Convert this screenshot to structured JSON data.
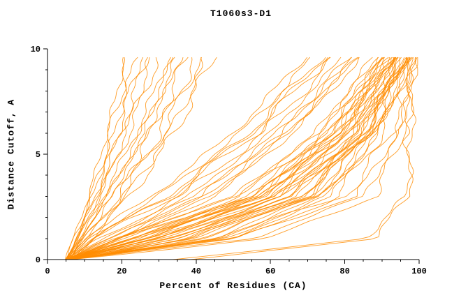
{
  "chart_data": {
    "type": "line",
    "title": "T1060s3-D1",
    "xlabel": "Percent of Residues (CA)",
    "ylabel": "Distance Cutoff, A",
    "xlim": [
      0,
      100
    ],
    "ylim": [
      0,
      10
    ],
    "x_ticks": [
      0,
      20,
      40,
      60,
      80,
      100
    ],
    "y_ticks": [
      0,
      5,
      10
    ],
    "x_minor_step": 5,
    "y_minor_step": 1,
    "grid": false,
    "legend": "none",
    "line_color": "#ff8c00",
    "axis_color": "#000000",
    "y_curve_max": 9.7,
    "anchor_y": [
      0,
      1,
      3,
      6,
      9.7
    ],
    "curves": [
      [
        5,
        22,
        55,
        75,
        90
      ],
      [
        5,
        25,
        60,
        80,
        93
      ],
      [
        6,
        30,
        65,
        83,
        95
      ],
      [
        5,
        18,
        50,
        72,
        88
      ],
      [
        6,
        28,
        62,
        82,
        94
      ],
      [
        5,
        35,
        68,
        85,
        96
      ],
      [
        6,
        40,
        70,
        86,
        96
      ],
      [
        5,
        20,
        52,
        74,
        91
      ],
      [
        6,
        32,
        64,
        84,
        95
      ],
      [
        5,
        26,
        58,
        79,
        93
      ],
      [
        6,
        38,
        69,
        86,
        97
      ],
      [
        5,
        24,
        57,
        78,
        92
      ],
      [
        6,
        33,
        66,
        85,
        96
      ],
      [
        5,
        29,
        61,
        81,
        94
      ],
      [
        6,
        42,
        72,
        87,
        97
      ],
      [
        5,
        21,
        54,
        76,
        90
      ],
      [
        6,
        36,
        67,
        85,
        96
      ],
      [
        5,
        27,
        59,
        80,
        93
      ],
      [
        6,
        44,
        73,
        88,
        97
      ],
      [
        5,
        23,
        56,
        77,
        92
      ],
      [
        6,
        34,
        65,
        84,
        95
      ],
      [
        5,
        31,
        63,
        83,
        95
      ],
      [
        6,
        46,
        74,
        88,
        98
      ],
      [
        5,
        19,
        51,
        73,
        89
      ],
      [
        6,
        39,
        70,
        86,
        96
      ],
      [
        5,
        28,
        60,
        80,
        94
      ],
      [
        6,
        48,
        75,
        89,
        98
      ],
      [
        5,
        25,
        57,
        78,
        92
      ],
      [
        6,
        37,
        68,
        85,
        96
      ],
      [
        5,
        30,
        62,
        82,
        94
      ],
      [
        6,
        50,
        76,
        89,
        98
      ],
      [
        5,
        22,
        55,
        76,
        91
      ],
      [
        6,
        41,
        71,
        87,
        97
      ],
      [
        5,
        26,
        58,
        79,
        93
      ],
      [
        6,
        52,
        78,
        90,
        98
      ],
      [
        5,
        24,
        56,
        77,
        92
      ],
      [
        6,
        55,
        85,
        95,
        99
      ],
      [
        5,
        45,
        80,
        93,
        99
      ],
      [
        6,
        60,
        88,
        96,
        99
      ],
      [
        5,
        50,
        83,
        94,
        99
      ],
      [
        5,
        15,
        38,
        60,
        80
      ],
      [
        6,
        18,
        42,
        64,
        83
      ],
      [
        5,
        12,
        32,
        55,
        75
      ],
      [
        6,
        20,
        45,
        66,
        85
      ],
      [
        5,
        14,
        36,
        58,
        78
      ],
      [
        6,
        16,
        40,
        62,
        82
      ],
      [
        5,
        10,
        28,
        50,
        70
      ],
      [
        6,
        13,
        34,
        56,
        76
      ],
      [
        5,
        17,
        41,
        63,
        83
      ],
      [
        6,
        11,
        30,
        52,
        72
      ],
      [
        5,
        19,
        44,
        65,
        84
      ],
      [
        6,
        12,
        33,
        54,
        74
      ],
      [
        5,
        8,
        14,
        22,
        30
      ],
      [
        5,
        9,
        16,
        26,
        35
      ],
      [
        6,
        10,
        18,
        28,
        38
      ],
      [
        5,
        8,
        13,
        20,
        27
      ],
      [
        6,
        9,
        15,
        24,
        33
      ],
      [
        5,
        10,
        19,
        30,
        40
      ],
      [
        6,
        11,
        21,
        33,
        43
      ],
      [
        5,
        8,
        12,
        18,
        24
      ],
      [
        6,
        9,
        17,
        27,
        36
      ],
      [
        5,
        10,
        20,
        31,
        42
      ],
      [
        6,
        8,
        14,
        21,
        28
      ],
      [
        5,
        9,
        16,
        25,
        34
      ],
      [
        6,
        12,
        22,
        34,
        45
      ],
      [
        5,
        8,
        13,
        19,
        25
      ],
      [
        5,
        7,
        11,
        16,
        21
      ],
      [
        5,
        7,
        12,
        17,
        22
      ],
      [
        35,
        85,
        97,
        97,
        98
      ],
      [
        38,
        88,
        97,
        98,
        98
      ]
    ]
  }
}
